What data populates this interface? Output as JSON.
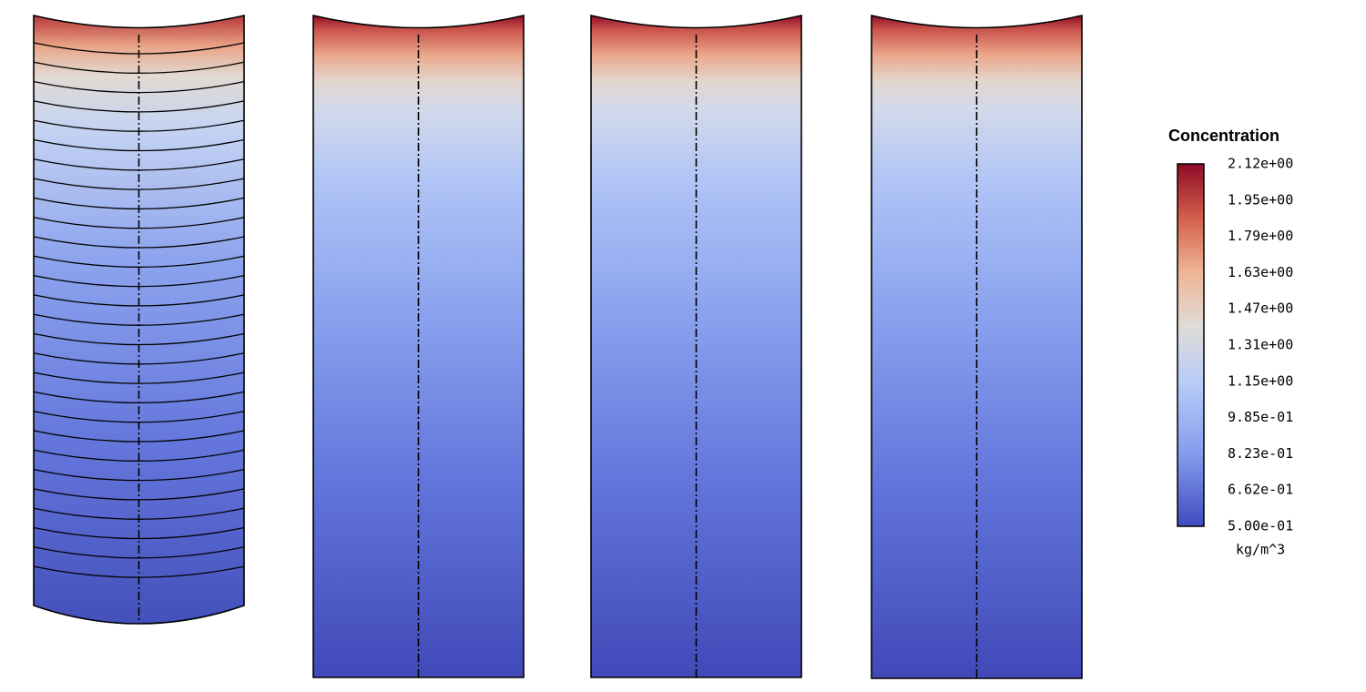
{
  "legend": {
    "title": "Concentration",
    "labels": [
      "2.12e+00",
      "1.95e+00",
      "1.79e+00",
      "1.63e+00",
      "1.47e+00",
      "1.31e+00",
      "1.15e+00",
      "9.85e-01",
      "8.23e-01",
      "6.62e-01",
      "5.00e-01"
    ],
    "unit": "kg/m^3"
  }
}
